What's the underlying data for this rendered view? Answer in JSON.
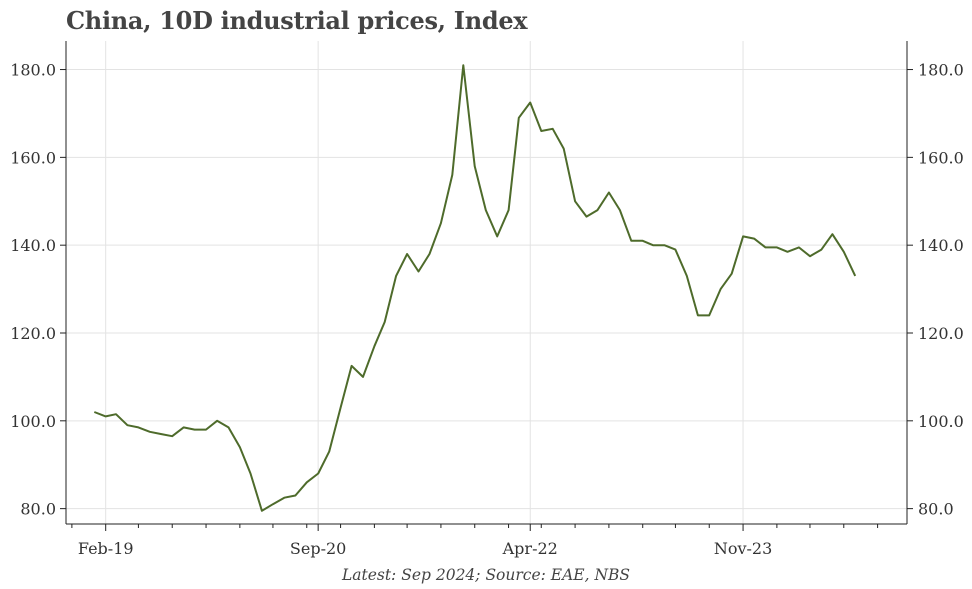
{
  "chart_data": {
    "type": "line",
    "title": "China, 10D industrial prices, Index",
    "caption": "Latest: Sep 2024; Source: EAE, NBS",
    "xlabel": "",
    "ylabel": "",
    "ylim": [
      76.5,
      186.5
    ],
    "yticks": [
      80,
      100,
      120,
      140,
      160,
      180
    ],
    "ytick_labels": [
      "80.0",
      "100.0",
      "120.0",
      "140.0",
      "160.0",
      "180.0"
    ],
    "xlim": [
      "2018-10-16",
      "2025-01-20"
    ],
    "xticks": [
      "2019-02-01",
      "2020-09-01",
      "2022-04-01",
      "2023-11-01"
    ],
    "xtick_labels": [
      "Feb-19",
      "Sep-20",
      "Apr-22",
      "Nov-23"
    ],
    "grid": true,
    "line_color": "#4e6b2b",
    "series": [
      {
        "name": "",
        "x": [
          "2019-01-01",
          "2019-02-01",
          "2019-03-01",
          "2019-04-01",
          "2019-05-01",
          "2019-06-01",
          "2019-07-01",
          "2019-08-01",
          "2019-09-01",
          "2019-10-01",
          "2019-11-01",
          "2019-12-01",
          "2020-01-01",
          "2020-02-01",
          "2020-03-01",
          "2020-04-01",
          "2020-05-01",
          "2020-06-01",
          "2020-07-01",
          "2020-08-01",
          "2020-09-01",
          "2020-10-01",
          "2020-11-01",
          "2020-12-01",
          "2021-01-01",
          "2021-02-01",
          "2021-03-01",
          "2021-04-01",
          "2021-05-01",
          "2021-06-01",
          "2021-07-01",
          "2021-08-01",
          "2021-09-01",
          "2021-10-01",
          "2021-11-01",
          "2021-12-01",
          "2022-01-01",
          "2022-02-01",
          "2022-03-01",
          "2022-04-01",
          "2022-05-01",
          "2022-06-01",
          "2022-07-01",
          "2022-08-01",
          "2022-09-01",
          "2022-10-01",
          "2022-11-01",
          "2022-12-01",
          "2023-01-01",
          "2023-02-01",
          "2023-03-01",
          "2023-04-01",
          "2023-05-01",
          "2023-06-01",
          "2023-07-01",
          "2023-08-01",
          "2023-09-01",
          "2023-10-01",
          "2023-11-01",
          "2023-12-01",
          "2024-01-01",
          "2024-02-01",
          "2024-03-01",
          "2024-04-01",
          "2024-05-01",
          "2024-06-01",
          "2024-07-01",
          "2024-08-01",
          "2024-09-01"
        ],
        "values": [
          102.0,
          101.0,
          101.5,
          99.0,
          98.5,
          97.5,
          97.0,
          96.5,
          98.5,
          98.0,
          98.0,
          100.0,
          98.5,
          94.0,
          88.0,
          79.5,
          81.0,
          82.5,
          83.0,
          86.0,
          88.0,
          93.0,
          103.0,
          112.5,
          110.0,
          117.0,
          122.5,
          133.0,
          138.0,
          134.0,
          138.0,
          145.0,
          156.0,
          181.0,
          158.0,
          148.0,
          142.0,
          148.0,
          169.0,
          172.5,
          166.0,
          166.5,
          162.0,
          150.0,
          146.5,
          148.0,
          152.0,
          148.0,
          141.0,
          141.0,
          140.0,
          140.0,
          139.0,
          133.0,
          124.0,
          124.0,
          130.0,
          133.5,
          142.0,
          141.5,
          139.5,
          139.5,
          138.5,
          139.5,
          137.5,
          139.0,
          142.5,
          138.5,
          133.0
        ]
      }
    ]
  }
}
